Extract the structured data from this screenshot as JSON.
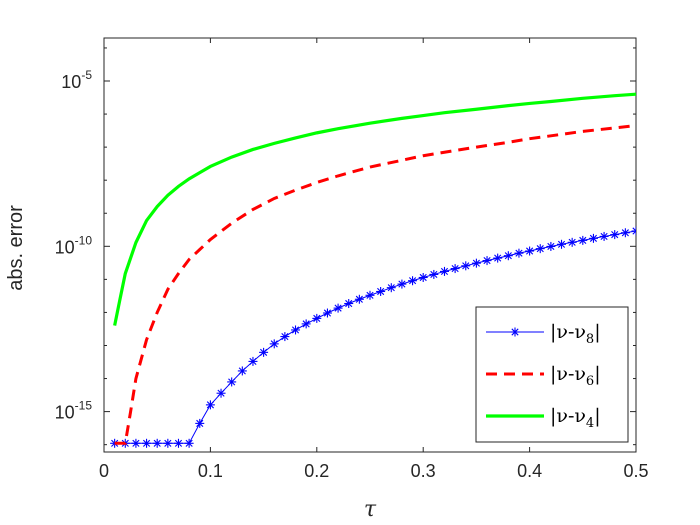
{
  "chart_data": {
    "type": "line",
    "title": "",
    "xlabel": "τ",
    "ylabel": "abs. error",
    "yscale": "log",
    "xlim": [
      0,
      0.5
    ],
    "ylim": [
      6e-17,
      0.0002
    ],
    "xticks": [
      0,
      0.1,
      0.2,
      0.3,
      0.4,
      0.5
    ],
    "xtick_labels": [
      "0",
      "0.1",
      "0.2",
      "0.3",
      "0.4",
      "0.5"
    ],
    "yticks": [
      {
        "value": 1e-15,
        "base": "10",
        "exp": "-15"
      },
      {
        "value": 1e-10,
        "base": "10",
        "exp": "-10"
      },
      {
        "value": 1e-05,
        "base": "10",
        "exp": "-5"
      }
    ],
    "grid": false,
    "legend_position": "bottom-right",
    "series": [
      {
        "name": "|ν-ν8|",
        "legend": {
          "prefix": "|ν-ν",
          "sub": "8",
          "suffix": "|"
        },
        "color": "#0000ff",
        "style": "solid-star",
        "x": [
          0.01,
          0.02,
          0.03,
          0.04,
          0.05,
          0.06,
          0.07,
          0.08,
          0.09,
          0.1,
          0.11,
          0.12,
          0.13,
          0.14,
          0.15,
          0.16,
          0.17,
          0.18,
          0.19,
          0.2,
          0.21,
          0.22,
          0.23,
          0.24,
          0.25,
          0.26,
          0.27,
          0.28,
          0.29,
          0.3,
          0.31,
          0.32,
          0.33,
          0.34,
          0.35,
          0.36,
          0.37,
          0.38,
          0.39,
          0.4,
          0.41,
          0.42,
          0.43,
          0.44,
          0.45,
          0.46,
          0.47,
          0.48,
          0.49,
          0.5
        ],
        "y": [
          1.1e-16,
          1.1e-16,
          1.1e-16,
          1.1e-16,
          1.1e-16,
          1.1e-16,
          1.1e-16,
          1.1e-16,
          4.4e-16,
          1.6e-15,
          3.6e-15,
          7.9e-15,
          1.7e-14,
          3.3e-14,
          6.2e-14,
          1.12e-13,
          1.86e-13,
          2.95e-13,
          4.5e-13,
          6.6e-13,
          9.6e-13,
          1.35e-12,
          1.86e-12,
          2.5e-12,
          3.3e-12,
          4.3e-12,
          5.6e-12,
          7.2e-12,
          9.1e-12,
          1.14e-11,
          1.41e-11,
          1.74e-11,
          2.12e-11,
          2.57e-11,
          3.09e-11,
          3.7e-11,
          4.4e-11,
          5.2e-11,
          6.2e-11,
          7.2e-11,
          8.5e-11,
          9.9e-11,
          1.15e-10,
          1.32e-10,
          1.51e-10,
          1.74e-10,
          1.99e-10,
          2.26e-10,
          2.57e-10,
          2.9e-10
        ]
      },
      {
        "name": "|ν-ν6|",
        "legend": {
          "prefix": "|ν-ν",
          "sub": "6",
          "suffix": "|"
        },
        "color": "#ff0000",
        "style": "dashed",
        "x": [
          0.01,
          0.02,
          0.025,
          0.03,
          0.04,
          0.05,
          0.06,
          0.07,
          0.08,
          0.09,
          0.1,
          0.12,
          0.14,
          0.16,
          0.18,
          0.2,
          0.22,
          0.25,
          0.28,
          0.3,
          0.32,
          0.35,
          0.38,
          0.4,
          0.42,
          0.45,
          0.48,
          0.5
        ],
        "y": [
          1.1e-16,
          1.1e-16,
          1e-15,
          1e-14,
          1.5e-13,
          1e-12,
          5e-12,
          1.5e-11,
          4e-11,
          8e-11,
          1.6e-10,
          5e-10,
          1.3e-09,
          2.8e-09,
          5e-09,
          8.5e-09,
          1.35e-08,
          2.5e-08,
          4e-08,
          5.5e-08,
          7e-08,
          1e-07,
          1.4e-07,
          1.8e-07,
          2.2e-07,
          3e-07,
          3.8e-07,
          4.5e-07
        ]
      },
      {
        "name": "|ν-ν4|",
        "legend": {
          "prefix": "|ν-ν",
          "sub": "4",
          "suffix": "|"
        },
        "color": "#00ff00",
        "style": "solid",
        "x": [
          0.01,
          0.015,
          0.02,
          0.03,
          0.04,
          0.05,
          0.06,
          0.07,
          0.08,
          0.09,
          0.1,
          0.12,
          0.14,
          0.16,
          0.18,
          0.2,
          0.22,
          0.25,
          0.28,
          0.3,
          0.32,
          0.35,
          0.38,
          0.4,
          0.42,
          0.45,
          0.48,
          0.5
        ],
        "y": [
          4e-13,
          2.5e-12,
          1.5e-11,
          1.3e-10,
          6e-10,
          1.6e-09,
          3.5e-09,
          6.5e-09,
          1.1e-08,
          1.7e-08,
          2.6e-08,
          5e-08,
          8.5e-08,
          1.3e-07,
          1.9e-07,
          2.7e-07,
          3.6e-07,
          5.3e-07,
          7.4e-07,
          9e-07,
          1.1e-06,
          1.4e-06,
          1.8e-06,
          2.1e-06,
          2.4e-06,
          3e-06,
          3.6e-06,
          4e-06
        ]
      }
    ]
  }
}
